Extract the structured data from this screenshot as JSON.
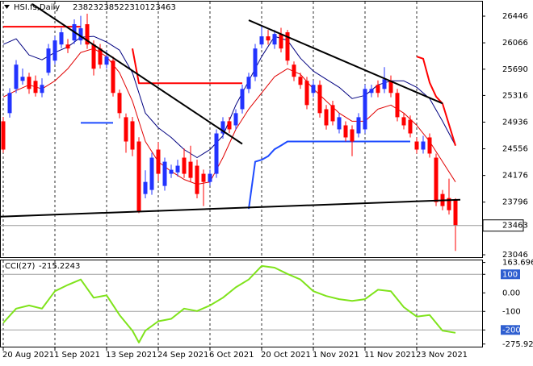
{
  "chart_data": {
    "type": "candlestick",
    "title": "HSI.fs,Daily",
    "categories": [
      "20 Aug 2021",
      null,
      null,
      null,
      null,
      null,
      null,
      null,
      "1 Sep 2021",
      null,
      null,
      null,
      null,
      null,
      null,
      null,
      "13 Sep 2021",
      null,
      null,
      null,
      null,
      null,
      null,
      null,
      "24 Sep 2021",
      null,
      null,
      null,
      null,
      null,
      null,
      null,
      "6 Oct 2021",
      null,
      null,
      null,
      null,
      null,
      null,
      null,
      "20 Oct 2021",
      null,
      null,
      null,
      null,
      null,
      null,
      null,
      "1 Nov 2021",
      null,
      null,
      null,
      null,
      null,
      null,
      null,
      "11 Nov 2021",
      null,
      null,
      null,
      null,
      null,
      null,
      null,
      "23 Nov 2021",
      null,
      null,
      null,
      null,
      null,
      null
    ],
    "candles": {
      "open": [
        24948,
        25064,
        25409,
        25524,
        25582,
        25524,
        25352,
        25640,
        25812,
        26042,
        26042,
        26100,
        26100,
        26331,
        26042,
        25985,
        25755,
        25812,
        25352,
        25006,
        24948,
        24660,
        23912,
        23970,
        24545,
        24027,
        24200,
        24220,
        24430,
        24372,
        24315,
        24200,
        24084,
        24200,
        24775,
        24948,
        24890,
        25120,
        25409,
        25582,
        26042,
        26158,
        26042,
        26192,
        26216,
        25755,
        25582,
        25524,
        25352,
        25467,
        25120,
        25179,
        24833,
        24890,
        24833,
        24775,
        24833,
        25352,
        25467,
        25409,
        25524,
        25352,
        25006,
        24970,
        24660,
        24545,
        24718,
        24430,
        23912,
        23854,
        23823
      ],
      "high": [
        25010,
        25420,
        25820,
        25700,
        25640,
        25600,
        25560,
        26050,
        26160,
        26280,
        26120,
        26400,
        26450,
        26480,
        26100,
        26050,
        25950,
        25870,
        25400,
        25060,
        25010,
        24720,
        24250,
        24500,
        24650,
        24430,
        24330,
        24400,
        24560,
        24600,
        24400,
        24260,
        24260,
        24833,
        25006,
        25010,
        25120,
        25470,
        25640,
        26050,
        26300,
        26250,
        26250,
        26280,
        26250,
        25800,
        25640,
        25580,
        25530,
        25530,
        25180,
        25240,
        25064,
        24948,
        24890,
        25064,
        25470,
        25470,
        25530,
        25720,
        25600,
        25409,
        25064,
        25030,
        24718,
        24740,
        24775,
        24488,
        23970,
        24130,
        23852
      ],
      "low": [
        24500,
        25000,
        25350,
        25470,
        25340,
        25300,
        25290,
        25600,
        25760,
        25990,
        25920,
        26050,
        26040,
        25980,
        25600,
        25700,
        25700,
        25300,
        24990,
        24500,
        24450,
        23640,
        23850,
        23900,
        24100,
        23960,
        24140,
        24160,
        24140,
        24080,
        23850,
        23740,
        24030,
        24142,
        24700,
        24780,
        24830,
        25060,
        25350,
        25520,
        25990,
        26040,
        25980,
        25930,
        25750,
        25520,
        25410,
        25120,
        25290,
        25000,
        24830,
        24890,
        24775,
        24660,
        24450,
        24718,
        24775,
        25290,
        25290,
        25350,
        25290,
        24948,
        24833,
        24718,
        24488,
        24488,
        24430,
        23740,
        23680,
        23620,
        23101
      ],
      "close": [
        24545,
        25352,
        25755,
        25582,
        25409,
        25352,
        25467,
        25985,
        26100,
        26216,
        25985,
        26331,
        26273,
        26042,
        25697,
        25755,
        25870,
        25352,
        25064,
        24660,
        24545,
        23658,
        24084,
        24430,
        24200,
        24372,
        24257,
        24315,
        24200,
        24142,
        23912,
        24084,
        24200,
        24775,
        24948,
        24833,
        25064,
        25409,
        25582,
        25985,
        26158,
        26100,
        26192,
        25985,
        25812,
        25582,
        25467,
        25179,
        25467,
        25064,
        24890,
        24948,
        25006,
        24718,
        24660,
        25006,
        25409,
        25409,
        25352,
        25547,
        25352,
        25006,
        24890,
        24775,
        24545,
        24660,
        24488,
        23796,
        23740,
        23681,
        23463
      ],
      "up_color": "#2233ff",
      "down_color": "#ff0000"
    },
    "lines": [
      {
        "color": "#000080",
        "width": 1,
        "x": [
          0,
          2,
          4,
          6,
          8,
          10,
          12,
          14,
          16,
          18,
          20,
          22,
          24,
          26,
          28,
          30,
          32,
          34,
          36,
          38,
          40,
          42,
          44,
          46,
          48,
          50,
          52,
          54,
          56,
          58,
          60,
          62,
          64,
          66,
          68,
          70
        ],
        "values": [
          26043,
          26123,
          25893,
          25824,
          25928,
          26008,
          26146,
          26158,
          26077,
          25962,
          25640,
          25064,
          24856,
          24718,
          24545,
          24430,
          24545,
          24741,
          25179,
          25524,
          25870,
          26158,
          26100,
          25847,
          25663,
          25547,
          25432,
          25271,
          25317,
          25467,
          25524,
          25524,
          25432,
          25271,
          24948,
          24603
        ]
      },
      {
        "color": "#e00000",
        "width": 1,
        "x": [
          0,
          2,
          4,
          6,
          8,
          10,
          12,
          14,
          16,
          18,
          20,
          22,
          24,
          26,
          28,
          30,
          32,
          34,
          36,
          38,
          40,
          42,
          44,
          46,
          48,
          50,
          52,
          54,
          56,
          58,
          60,
          62,
          64,
          66,
          68,
          70
        ],
        "values": [
          25294,
          25386,
          25467,
          25409,
          25524,
          25697,
          25928,
          25985,
          25870,
          25640,
          25236,
          24660,
          24372,
          24234,
          24119,
          24050,
          24084,
          24430,
          24833,
          25121,
          25352,
          25582,
          25697,
          25617,
          25409,
          25236,
          25064,
          24948,
          24948,
          25121,
          25179,
          25064,
          24891,
          24660,
          24372,
          24084
        ]
      },
      {
        "color": "#ff0000",
        "width": 2,
        "values": [
          26296,
          26296,
          26296,
          26296,
          26296,
          26296,
          26296,
          26296,
          26296,
          26296,
          26296,
          26296,
          26296,
          null,
          null,
          null,
          null,
          null,
          null,
          null,
          25985,
          25490,
          25490,
          25490,
          25490,
          25490,
          25490,
          25490,
          25490,
          25490,
          25490,
          25490,
          25490,
          25490,
          25490,
          25490,
          25490,
          25490,
          null,
          null,
          null,
          null,
          null,
          null,
          null,
          null,
          null,
          null,
          null,
          null,
          null,
          null,
          null,
          null,
          null,
          null,
          null,
          null,
          null,
          null,
          null,
          null,
          null,
          null,
          25870,
          25840,
          25500,
          25300,
          25200,
          24900,
          24600
        ]
      },
      {
        "color": "#1e4bff",
        "width": 2,
        "values": [
          null,
          null,
          null,
          null,
          null,
          null,
          null,
          null,
          null,
          null,
          null,
          null,
          24925,
          24925,
          24925,
          24925,
          24925,
          24925,
          null,
          null,
          null,
          null,
          null,
          null,
          null,
          null,
          null,
          null,
          null,
          null,
          null,
          null,
          null,
          null,
          null,
          null,
          null,
          null,
          23700,
          24372,
          24400,
          24450,
          24550,
          24603,
          24660,
          24660,
          24660,
          24660,
          24660,
          24660,
          24660,
          24660,
          24660,
          24660,
          24660,
          24660,
          24660,
          24660,
          24660,
          24660,
          24660,
          24660,
          24660,
          24660,
          null,
          null,
          null,
          null,
          null,
          null,
          null
        ]
      }
    ],
    "trendlines": [
      {
        "color": "#000000",
        "x": [
          4.5,
          37
        ],
        "values": [
          26619,
          24626
        ]
      },
      {
        "color": "#000000",
        "x": [
          38,
          68
        ],
        "values": [
          26388,
          25202
        ]
      },
      {
        "color": "#000000",
        "x": [
          -0.5,
          70.75
        ],
        "values": [
          23589,
          23831
        ]
      }
    ],
    "ylim": [
      23012,
      26653
    ],
    "yticks": [
      26446,
      26066,
      25690,
      25316,
      24936,
      24556,
      24176,
      23796,
      23046
    ],
    "grid": true,
    "indicator": {
      "label": "CCI(27)",
      "color": "#7fe31b",
      "x": [
        0,
        2,
        4,
        6,
        8,
        10,
        12,
        14,
        16,
        18,
        20,
        21,
        22,
        24,
        26,
        28,
        30,
        32,
        34,
        36,
        38,
        40,
        42,
        44,
        46,
        48,
        50,
        52,
        54,
        56,
        58,
        60,
        62,
        64,
        66,
        68,
        70
      ],
      "values": [
        -162,
        -85,
        -68,
        -85,
        9,
        43,
        72,
        -26,
        -13,
        -119,
        -204,
        -268,
        -204,
        -153,
        -140,
        -85,
        -98,
        -68,
        -26,
        30,
        72,
        145,
        136,
        102,
        72,
        9,
        -17,
        -34,
        -43,
        -34,
        17,
        9,
        -77,
        -128,
        -119,
        -204,
        -215.2243
      ],
      "ylim": [
        -290,
        175
      ],
      "yticks": [
        163.6968,
        100,
        {
          "value": 0,
          "label": "0.00"
        },
        -100,
        -200,
        -275.924
      ],
      "levels": [
        100,
        -100,
        -200
      ],
      "boxed_ticks": [
        100,
        -200
      ],
      "box_color": "#2f5fd0"
    }
  }
}
